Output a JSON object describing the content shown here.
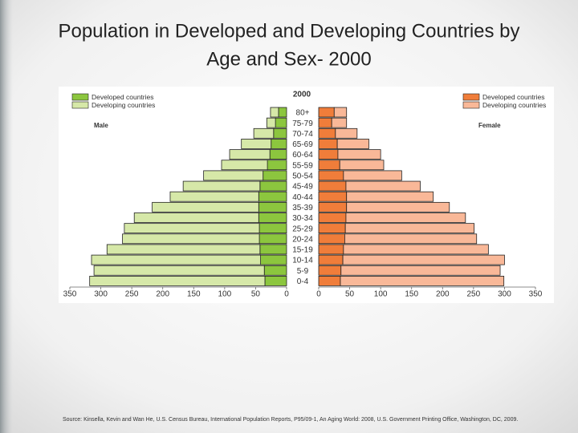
{
  "chart_data": {
    "type": "pyramid",
    "title": [
      "Population in Developed and Developing Countries by",
      "Age and Sex- 2000"
    ],
    "subtitle": "2000",
    "left_label": "Male",
    "right_label": "Female",
    "categories": [
      "80+",
      "75-79",
      "70-74",
      "65-69",
      "60-64",
      "55-59",
      "50-54",
      "45-49",
      "40-44",
      "35-39",
      "30-34",
      "25-29",
      "20-24",
      "15-19",
      "10-14",
      "5-9",
      "0-4"
    ],
    "series": [
      {
        "name": "Developed countries",
        "side": "left",
        "color": "#8cc63e",
        "values": [
          13,
          18,
          21,
          25,
          27,
          31,
          38,
          43,
          45,
          45,
          45,
          44,
          44,
          43,
          42,
          36,
          35
        ]
      },
      {
        "name": "Developing countries",
        "side": "left",
        "color": "#d6e8a8",
        "values": [
          13,
          14,
          32,
          48,
          65,
          74,
          96,
          124,
          143,
          172,
          201,
          218,
          221,
          247,
          273,
          275,
          283
        ]
      },
      {
        "name": "Developed countries",
        "side": "right",
        "color": "#f07d3a",
        "values": [
          25,
          21,
          27,
          30,
          31,
          34,
          40,
          44,
          45,
          45,
          44,
          43,
          42,
          40,
          39,
          36,
          35
        ]
      },
      {
        "name": "Developing countries",
        "side": "right",
        "color": "#f9b898",
        "values": [
          20,
          24,
          35,
          51,
          69,
          71,
          94,
          120,
          140,
          166,
          193,
          208,
          213,
          234,
          261,
          257,
          264
        ]
      }
    ],
    "xlim": [
      0,
      350
    ],
    "xticks": [
      0,
      50,
      100,
      150,
      200,
      250,
      300,
      350
    ],
    "source": "Source: Kinsella, Kevin and Wan He, U.S. Census Bureau, International Population Reports, P95/09-1, An Aging World: 2008, U.S. Government Printing Office, Washington, DC, 2009."
  }
}
